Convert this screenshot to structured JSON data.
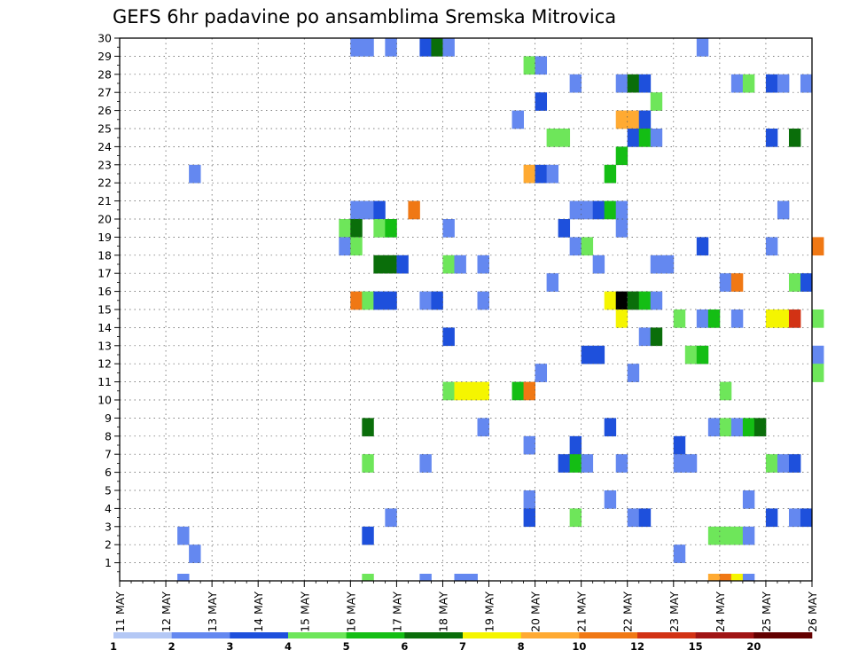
{
  "chart_data": {
    "type": "heatmap",
    "title": "GEFS 6hr padavine po ansamblima Sremska Mitrovica",
    "x_tick_labels": [
      "11 MAY",
      "12 MAY",
      "13 MAY",
      "14 MAY",
      "15 MAY",
      "16 MAY",
      "17 MAY",
      "18 MAY",
      "19 MAY",
      "20 MAY",
      "21 MAY",
      "22 MAY",
      "23 MAY",
      "24 MAY",
      "25 MAY",
      "26 MAY"
    ],
    "y_range": [
      0,
      30
    ],
    "y_tick_labels": [
      "1",
      "2",
      "3",
      "4",
      "5",
      "6",
      "7",
      "8",
      "9",
      "10",
      "11",
      "12",
      "13",
      "14",
      "15",
      "16",
      "17",
      "18",
      "19",
      "20",
      "21",
      "22",
      "23",
      "24",
      "25",
      "26",
      "27",
      "28",
      "29",
      "30"
    ],
    "grid": true,
    "colorbar": {
      "levels": [
        "1",
        "2",
        "3",
        "4",
        "5",
        "6",
        "7",
        "8",
        "10",
        "12",
        "15",
        "20"
      ],
      "colors": [
        "#b4c8f5",
        "#6488f0",
        "#1e50dc",
        "#6ee65a",
        "#14be14",
        "#0a6e0a",
        "#f5f500",
        "#ffaa32",
        "#f07814",
        "#d23214",
        "#a01414",
        "#640000"
      ]
    },
    "cells": [
      [
        16.0,
        30,
        1
      ],
      [
        16.25,
        30,
        1
      ],
      [
        16.75,
        30,
        1
      ],
      [
        17.5,
        30,
        2
      ],
      [
        17.75,
        30,
        5
      ],
      [
        18.0,
        30,
        1
      ],
      [
        23.5,
        30,
        1
      ],
      [
        19.75,
        29,
        3
      ],
      [
        20.0,
        29,
        1
      ],
      [
        20.75,
        28,
        1
      ],
      [
        21.75,
        28,
        1
      ],
      [
        22.0,
        28,
        5
      ],
      [
        22.25,
        28,
        2
      ],
      [
        24.25,
        28,
        1
      ],
      [
        24.5,
        28,
        3
      ],
      [
        25.0,
        28,
        2
      ],
      [
        25.25,
        28,
        1
      ],
      [
        25.75,
        28,
        1
      ],
      [
        20.0,
        27,
        2
      ],
      [
        22.5,
        27,
        3
      ],
      [
        19.5,
        26,
        1
      ],
      [
        21.75,
        26,
        7
      ],
      [
        22.0,
        26,
        7
      ],
      [
        22.25,
        26,
        2
      ],
      [
        20.25,
        25,
        3
      ],
      [
        20.5,
        25,
        3
      ],
      [
        22.0,
        25,
        2
      ],
      [
        22.25,
        25,
        4
      ],
      [
        22.5,
        25,
        1
      ],
      [
        25.0,
        25,
        2
      ],
      [
        25.5,
        25,
        5
      ],
      [
        21.75,
        24,
        4
      ],
      [
        12.5,
        23,
        1
      ],
      [
        19.75,
        23,
        7
      ],
      [
        20.0,
        23,
        2
      ],
      [
        20.25,
        23,
        1
      ],
      [
        21.5,
        23,
        4
      ],
      [
        16.0,
        21,
        1
      ],
      [
        16.25,
        21,
        1
      ],
      [
        16.5,
        21,
        2
      ],
      [
        17.25,
        21,
        8
      ],
      [
        20.75,
        21,
        1
      ],
      [
        21.0,
        21,
        1
      ],
      [
        21.25,
        21,
        2
      ],
      [
        21.5,
        21,
        4
      ],
      [
        21.75,
        21,
        1
      ],
      [
        25.25,
        21,
        1
      ],
      [
        15.75,
        20,
        3
      ],
      [
        16.0,
        20,
        5
      ],
      [
        16.5,
        20,
        3
      ],
      [
        16.75,
        20,
        4
      ],
      [
        18.0,
        20,
        1
      ],
      [
        20.5,
        20,
        2
      ],
      [
        21.75,
        20,
        1
      ],
      [
        15.75,
        19,
        1
      ],
      [
        16.0,
        19,
        3
      ],
      [
        20.75,
        19,
        1
      ],
      [
        21.0,
        19,
        3
      ],
      [
        23.5,
        19,
        2
      ],
      [
        25.0,
        19,
        1
      ],
      [
        26.0,
        19,
        8
      ],
      [
        16.5,
        18,
        5
      ],
      [
        16.75,
        18,
        5
      ],
      [
        17.0,
        18,
        2
      ],
      [
        18.0,
        18,
        3
      ],
      [
        18.25,
        18,
        1
      ],
      [
        18.75,
        18,
        1
      ],
      [
        21.25,
        18,
        1
      ],
      [
        22.5,
        18,
        1
      ],
      [
        22.75,
        18,
        1
      ],
      [
        20.25,
        17,
        1
      ],
      [
        24.0,
        17,
        1
      ],
      [
        24.25,
        17,
        8
      ],
      [
        25.5,
        17,
        3
      ],
      [
        25.75,
        17,
        2
      ],
      [
        16.0,
        16,
        8
      ],
      [
        16.25,
        16,
        3
      ],
      [
        16.5,
        16,
        2
      ],
      [
        16.75,
        16,
        2
      ],
      [
        17.5,
        16,
        1
      ],
      [
        17.75,
        16,
        2
      ],
      [
        18.75,
        16,
        1
      ],
      [
        21.5,
        16,
        6
      ],
      [
        21.75,
        16,
        12
      ],
      [
        22.0,
        16,
        5
      ],
      [
        22.25,
        16,
        4
      ],
      [
        22.5,
        16,
        1
      ],
      [
        21.75,
        15,
        6
      ],
      [
        23.0,
        15,
        3
      ],
      [
        23.5,
        15,
        1
      ],
      [
        23.75,
        15,
        4
      ],
      [
        24.25,
        15,
        1
      ],
      [
        25.0,
        15,
        6
      ],
      [
        25.25,
        15,
        6
      ],
      [
        25.5,
        15,
        9
      ],
      [
        26.0,
        15,
        3
      ],
      [
        18.0,
        14,
        2
      ],
      [
        22.25,
        14,
        1
      ],
      [
        22.5,
        14,
        5
      ],
      [
        21.0,
        13,
        2
      ],
      [
        21.25,
        13,
        2
      ],
      [
        23.25,
        13,
        3
      ],
      [
        23.5,
        13,
        4
      ],
      [
        26.0,
        13,
        1
      ],
      [
        20.0,
        12,
        1
      ],
      [
        22.0,
        12,
        1
      ],
      [
        26.0,
        12,
        3
      ],
      [
        18.0,
        11,
        3
      ],
      [
        18.25,
        11,
        6
      ],
      [
        18.5,
        11,
        6
      ],
      [
        18.75,
        11,
        6
      ],
      [
        19.5,
        11,
        4
      ],
      [
        19.75,
        11,
        8
      ],
      [
        24.0,
        11,
        3
      ],
      [
        16.25,
        9,
        5
      ],
      [
        18.75,
        9,
        1
      ],
      [
        21.5,
        9,
        2
      ],
      [
        23.75,
        9,
        1
      ],
      [
        24.0,
        9,
        3
      ],
      [
        24.25,
        9,
        1
      ],
      [
        24.5,
        9,
        4
      ],
      [
        24.75,
        9,
        5
      ],
      [
        19.75,
        8,
        1
      ],
      [
        20.75,
        8,
        2
      ],
      [
        23.0,
        8,
        2
      ],
      [
        16.25,
        7,
        3
      ],
      [
        17.5,
        7,
        1
      ],
      [
        20.5,
        7,
        2
      ],
      [
        20.75,
        7,
        4
      ],
      [
        21.0,
        7,
        1
      ],
      [
        21.75,
        7,
        1
      ],
      [
        23.0,
        7,
        1
      ],
      [
        23.25,
        7,
        1
      ],
      [
        25.0,
        7,
        3
      ],
      [
        25.25,
        7,
        1
      ],
      [
        25.5,
        7,
        2
      ],
      [
        19.75,
        5,
        1
      ],
      [
        21.5,
        5,
        1
      ],
      [
        24.5,
        5,
        1
      ],
      [
        16.75,
        4,
        1
      ],
      [
        19.75,
        4,
        2
      ],
      [
        20.75,
        4,
        3
      ],
      [
        22.0,
        4,
        1
      ],
      [
        22.25,
        4,
        2
      ],
      [
        25.0,
        4,
        2
      ],
      [
        25.5,
        4,
        1
      ],
      [
        25.75,
        4,
        2
      ],
      [
        12.25,
        3,
        1
      ],
      [
        16.25,
        3,
        2
      ],
      [
        23.75,
        3,
        3
      ],
      [
        24.0,
        3,
        3
      ],
      [
        24.25,
        3,
        3
      ],
      [
        24.5,
        3,
        1
      ],
      [
        12.5,
        2,
        1
      ],
      [
        23.0,
        2,
        1
      ]
    ],
    "bottom_cells": [
      [
        12.25,
        1
      ],
      [
        16.25,
        3
      ],
      [
        17.5,
        1
      ],
      [
        18.25,
        1
      ],
      [
        18.5,
        1
      ],
      [
        23.75,
        7
      ],
      [
        24.0,
        8
      ],
      [
        24.25,
        6
      ],
      [
        24.5,
        1
      ]
    ]
  }
}
